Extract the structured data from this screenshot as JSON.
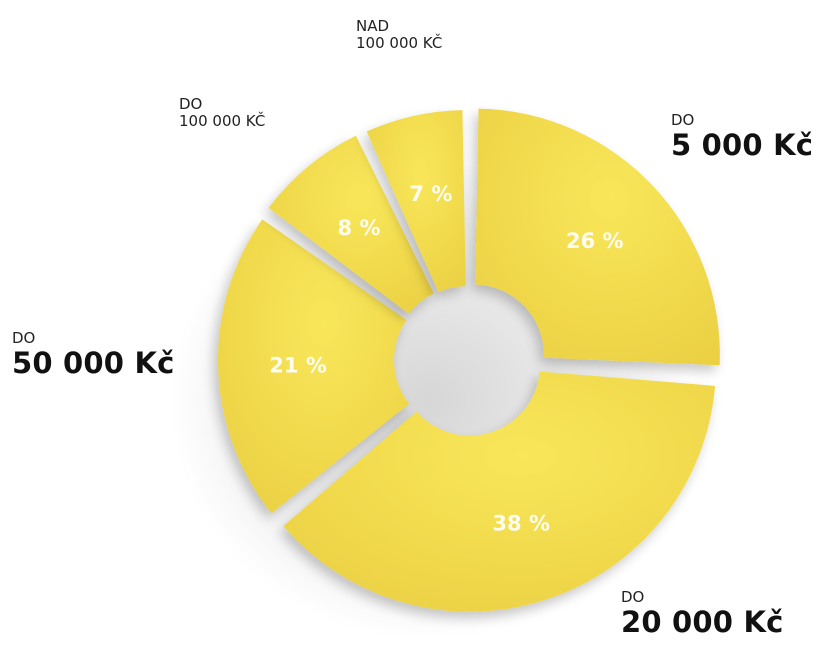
{
  "chart_data": {
    "type": "pie",
    "style": "donut",
    "categories": [
      {
        "prefix": "DO",
        "amount": "5 000 Kč",
        "emphasis": "big"
      },
      {
        "prefix": "DO",
        "amount": "20 000 Kč",
        "emphasis": "big"
      },
      {
        "prefix": "DO",
        "amount": "50 000 Kč",
        "emphasis": "big"
      },
      {
        "prefix": "DO",
        "amount": "100 000 KČ",
        "emphasis": "small"
      },
      {
        "prefix": "NAD",
        "amount": "100 000 KČ",
        "emphasis": "small"
      }
    ],
    "values": [
      26,
      38,
      21,
      8,
      7
    ],
    "value_labels": [
      "26 %",
      "38 %",
      "21 %",
      "8 %",
      "7 %"
    ],
    "unit": "%",
    "colors": {
      "slice_light": "#f7e24e",
      "slice_dark": "#ecd244",
      "slice_text": "#ffffff",
      "label_text": "#111111",
      "background": "#ffffff"
    },
    "legend": "none",
    "title": ""
  }
}
